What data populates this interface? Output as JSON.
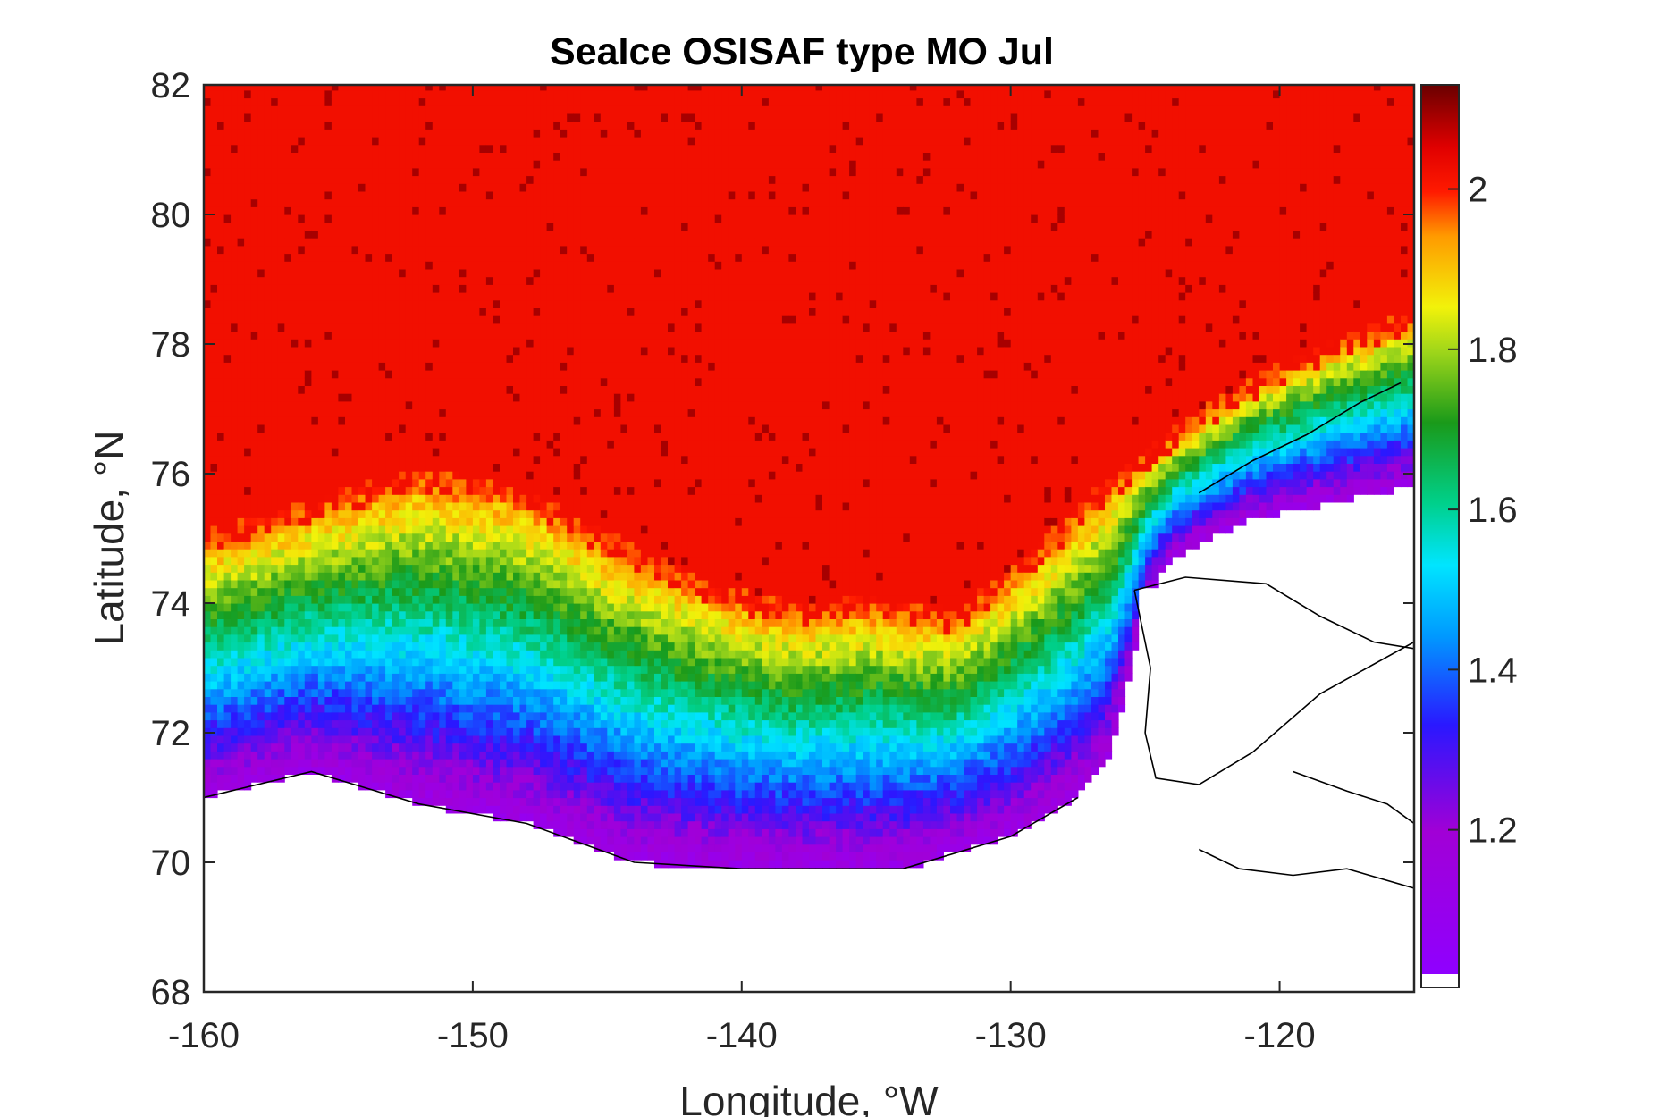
{
  "chart_data": {
    "type": "heatmap",
    "title": "SeaIce OSISAF type MO Jul",
    "xlabel": "Longitude, °W",
    "ylabel": "Latitude, °N",
    "xlim": [
      -160,
      -115
    ],
    "ylim": [
      68,
      82
    ],
    "xticks": [
      -160,
      -150,
      -140,
      -130,
      -120
    ],
    "yticks": [
      68,
      70,
      72,
      74,
      76,
      78,
      80,
      82
    ],
    "colorbar": {
      "range": [
        1.02,
        2.13
      ],
      "ticks": [
        1.2,
        1.4,
        1.6,
        1.8,
        2
      ],
      "colormap": "jet-like (purple - blue - cyan - green - yellow - red - dark red)",
      "nodata_color": "#ffffff"
    },
    "field_summary": {
      "north_of_about_75N": 2.02,
      "band_75_74N": 1.85,
      "band_74_73N": 1.65,
      "band_73_72N": 1.5,
      "band_72_71N": 1.35,
      "coastal_band_71_70N": 1.15,
      "land": "no data"
    }
  }
}
